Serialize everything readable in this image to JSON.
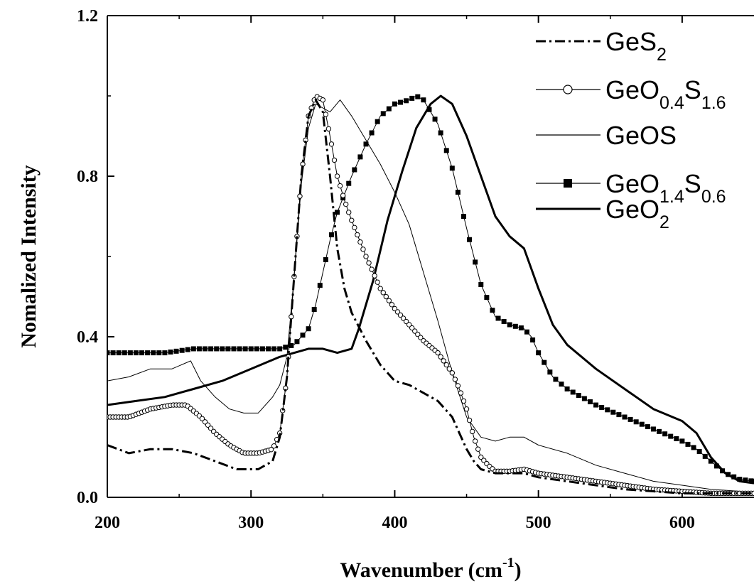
{
  "chart_data": {
    "type": "line",
    "title": "",
    "xlabel": "Wavenumber (cm",
    "xlabel_sup": "-1",
    "xlabel_close": ")",
    "ylabel": "Nomalized Intensity",
    "xlim": [
      200,
      650
    ],
    "ylim": [
      0.0,
      1.2
    ],
    "xticks": [
      200,
      300,
      400,
      500,
      600
    ],
    "xtick_labels": [
      "200",
      "300",
      "400",
      "500",
      "600"
    ],
    "yticks": [
      0.0,
      0.4,
      0.8,
      1.2
    ],
    "ytick_labels": [
      "0.0",
      "0.4",
      "0.8",
      "1.2"
    ],
    "legend_position": "top-right",
    "grid": false,
    "series": [
      {
        "name": "GeS2",
        "legend": {
          "base": "GeS",
          "parts": [
            {
              "t": "2",
              "sub": true
            }
          ]
        },
        "style": "dashdot",
        "marker": "none",
        "color": "#000000",
        "x": [
          200,
          215,
          230,
          245,
          260,
          275,
          290,
          305,
          315,
          320,
          325,
          330,
          335,
          340,
          345,
          350,
          355,
          360,
          365,
          370,
          380,
          390,
          400,
          410,
          420,
          430,
          440,
          445,
          450,
          455,
          460,
          465,
          470,
          480,
          490,
          500,
          520,
          540,
          560,
          580,
          600,
          620,
          640,
          650
        ],
        "y": [
          0.13,
          0.11,
          0.12,
          0.12,
          0.11,
          0.09,
          0.07,
          0.07,
          0.09,
          0.15,
          0.3,
          0.55,
          0.8,
          0.95,
          0.99,
          0.96,
          0.8,
          0.62,
          0.52,
          0.46,
          0.39,
          0.33,
          0.29,
          0.28,
          0.26,
          0.24,
          0.2,
          0.16,
          0.12,
          0.09,
          0.07,
          0.065,
          0.06,
          0.06,
          0.06,
          0.05,
          0.04,
          0.03,
          0.02,
          0.015,
          0.01,
          0.01,
          0.01,
          0.01
        ]
      },
      {
        "name": "GeO0.4S1.6",
        "legend": {
          "base": "GeO",
          "parts": [
            {
              "t": "0.4",
              "sub": true
            },
            {
              "t": "S",
              "sub": false
            },
            {
              "t": "1.6",
              "sub": true
            }
          ]
        },
        "style": "solid-thin",
        "marker": "circle",
        "color": "#000000",
        "x": [
          200,
          215,
          230,
          245,
          255,
          265,
          275,
          285,
          295,
          305,
          315,
          320,
          325,
          330,
          335,
          340,
          345,
          350,
          355,
          360,
          365,
          370,
          380,
          390,
          400,
          410,
          420,
          430,
          440,
          445,
          450,
          455,
          460,
          465,
          470,
          480,
          490,
          500,
          520,
          540,
          560,
          580,
          600,
          620,
          640,
          650
        ],
        "y": [
          0.2,
          0.2,
          0.22,
          0.23,
          0.23,
          0.2,
          0.16,
          0.13,
          0.11,
          0.11,
          0.12,
          0.16,
          0.3,
          0.55,
          0.8,
          0.95,
          1.0,
          0.99,
          0.9,
          0.8,
          0.74,
          0.69,
          0.6,
          0.52,
          0.47,
          0.43,
          0.39,
          0.36,
          0.31,
          0.27,
          0.22,
          0.15,
          0.1,
          0.08,
          0.065,
          0.065,
          0.07,
          0.06,
          0.05,
          0.04,
          0.03,
          0.02,
          0.015,
          0.01,
          0.01,
          0.01
        ]
      },
      {
        "name": "GeOS",
        "legend": {
          "base": "GeOS",
          "parts": []
        },
        "style": "solid-thin",
        "marker": "none",
        "color": "#000000",
        "x": [
          200,
          215,
          230,
          245,
          258,
          265,
          275,
          285,
          295,
          305,
          315,
          320,
          325,
          330,
          335,
          340,
          345,
          350,
          355,
          362,
          370,
          380,
          390,
          400,
          410,
          420,
          430,
          440,
          450,
          460,
          470,
          480,
          490,
          500,
          520,
          540,
          560,
          580,
          600,
          620,
          640,
          650
        ],
        "y": [
          0.29,
          0.3,
          0.32,
          0.32,
          0.34,
          0.29,
          0.25,
          0.22,
          0.21,
          0.21,
          0.25,
          0.28,
          0.35,
          0.55,
          0.78,
          0.92,
          0.98,
          0.97,
          0.96,
          0.99,
          0.95,
          0.89,
          0.83,
          0.76,
          0.68,
          0.56,
          0.44,
          0.31,
          0.2,
          0.15,
          0.14,
          0.15,
          0.15,
          0.13,
          0.11,
          0.08,
          0.06,
          0.04,
          0.03,
          0.02,
          0.015,
          0.01
        ]
      },
      {
        "name": "GeO1.4S0.6",
        "legend": {
          "base": "GeO",
          "parts": [
            {
              "t": "1.4",
              "sub": true
            },
            {
              "t": "S",
              "sub": false
            },
            {
              "t": "0.6",
              "sub": true
            }
          ]
        },
        "style": "solid-thin",
        "marker": "square",
        "color": "#000000",
        "x": [
          200,
          220,
          240,
          260,
          280,
          300,
          320,
          330,
          340,
          345,
          350,
          355,
          360,
          370,
          380,
          390,
          400,
          410,
          415,
          420,
          425,
          430,
          440,
          450,
          460,
          470,
          480,
          490,
          495,
          500,
          510,
          520,
          540,
          560,
          580,
          600,
          610,
          620,
          630,
          640,
          650
        ],
        "y": [
          0.36,
          0.36,
          0.36,
          0.37,
          0.37,
          0.37,
          0.37,
          0.38,
          0.42,
          0.48,
          0.56,
          0.64,
          0.71,
          0.8,
          0.88,
          0.95,
          0.98,
          0.99,
          1.0,
          0.99,
          0.96,
          0.93,
          0.82,
          0.67,
          0.53,
          0.45,
          0.43,
          0.42,
          0.4,
          0.36,
          0.3,
          0.27,
          0.23,
          0.2,
          0.17,
          0.14,
          0.12,
          0.09,
          0.06,
          0.045,
          0.04
        ]
      },
      {
        "name": "GeO2",
        "legend": {
          "base": "GeO",
          "parts": [
            {
              "t": "2",
              "sub": true
            }
          ]
        },
        "style": "solid-thick",
        "marker": "none",
        "color": "#000000",
        "x": [
          200,
          220,
          240,
          260,
          280,
          300,
          320,
          340,
          350,
          360,
          370,
          375,
          385,
          395,
          405,
          415,
          425,
          432,
          440,
          450,
          460,
          470,
          480,
          490,
          500,
          510,
          520,
          540,
          560,
          580,
          600,
          610,
          620,
          630,
          640,
          650
        ],
        "y": [
          0.23,
          0.24,
          0.25,
          0.27,
          0.29,
          0.32,
          0.35,
          0.37,
          0.37,
          0.36,
          0.37,
          0.42,
          0.54,
          0.69,
          0.81,
          0.92,
          0.98,
          1.0,
          0.98,
          0.9,
          0.8,
          0.7,
          0.65,
          0.62,
          0.52,
          0.43,
          0.38,
          0.32,
          0.27,
          0.22,
          0.19,
          0.16,
          0.1,
          0.06,
          0.04,
          0.035
        ]
      }
    ]
  }
}
